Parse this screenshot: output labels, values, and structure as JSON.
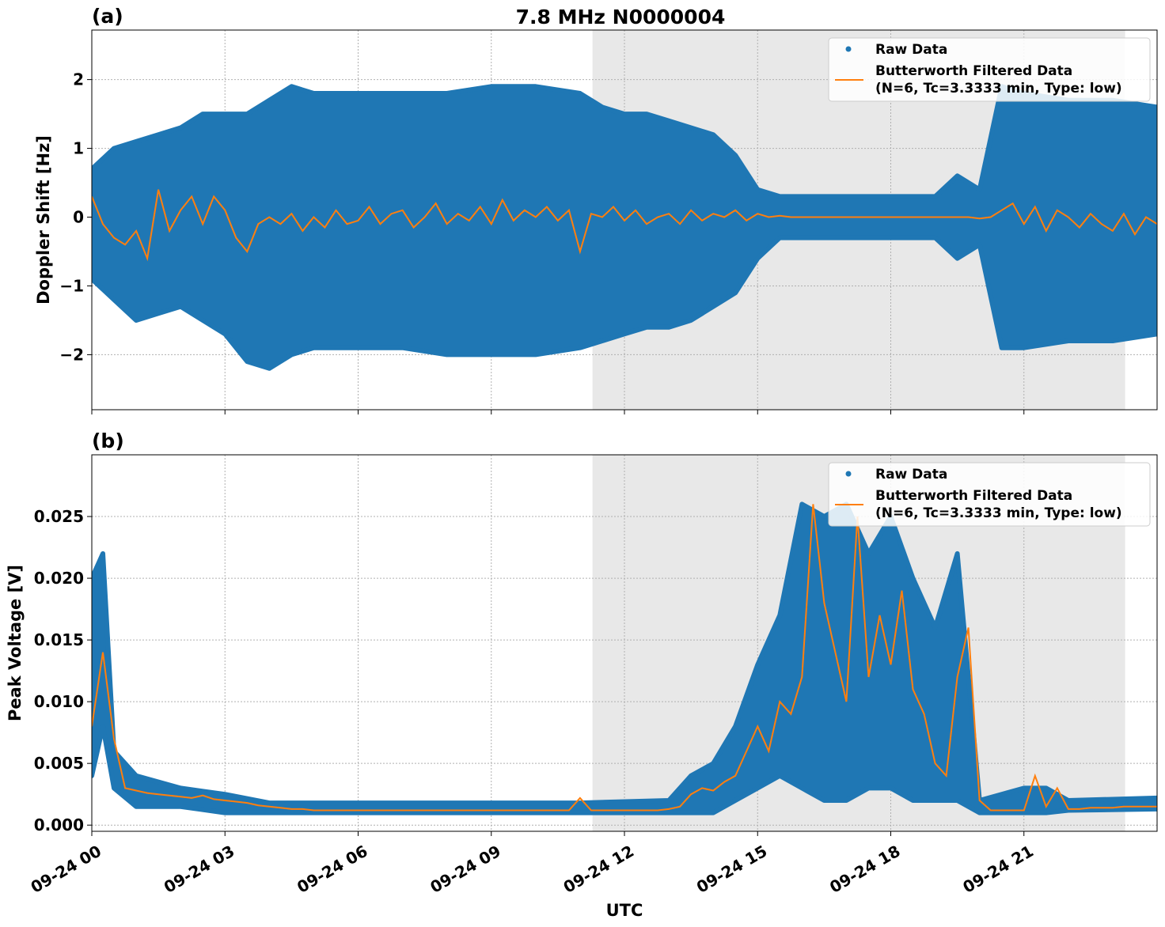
{
  "title": "7.8 MHz N0000004",
  "colors": {
    "raw": "#1f77b4",
    "filtered": "#ff7f0e",
    "shade": "#e8e8e8",
    "grid": "#b0b0b0"
  },
  "chart_data": [
    {
      "type": "scatter",
      "panel_label": "(a)",
      "ylabel": "Doppler Shift [Hz]",
      "xlabel": "",
      "x_unit": "hours UTC since 09-24 00",
      "xlim": [
        0,
        24
      ],
      "ylim": [
        -2.8,
        2.72
      ],
      "xticks": [
        0,
        3,
        6,
        9,
        12,
        15,
        18,
        21
      ],
      "xtick_labels": [
        "09-24 00",
        "09-24 03",
        "09-24 06",
        "09-24 09",
        "09-24 12",
        "09-24 15",
        "09-24 18",
        "09-24 21"
      ],
      "yticks": [
        -2,
        -1,
        0,
        1,
        2
      ],
      "ytick_labels": [
        "−2",
        "−1",
        "0",
        "1",
        "2"
      ],
      "grid": true,
      "shaded_span": [
        11.28,
        23.28
      ],
      "legend": {
        "placement": "top-right",
        "entries": [
          "Raw Data",
          "Butterworth Filtered Data",
          "(N=6, Tc=3.3333 min, Type: low)"
        ]
      },
      "raw_envelope": [
        [
          0,
          -0.9,
          0.7
        ],
        [
          0.5,
          -1.2,
          1.0
        ],
        [
          1,
          -1.5,
          1.1
        ],
        [
          1.5,
          -1.4,
          1.2
        ],
        [
          2,
          -1.3,
          1.3
        ],
        [
          2.5,
          -1.5,
          1.5
        ],
        [
          3,
          -1.7,
          1.5
        ],
        [
          3.5,
          -2.1,
          1.5
        ],
        [
          4,
          -2.2,
          1.7
        ],
        [
          4.5,
          -2.0,
          1.9
        ],
        [
          5,
          -1.9,
          1.8
        ],
        [
          6,
          -1.9,
          1.8
        ],
        [
          7,
          -1.9,
          1.8
        ],
        [
          8,
          -2.0,
          1.8
        ],
        [
          9,
          -2.0,
          1.9
        ],
        [
          10,
          -2.0,
          1.9
        ],
        [
          11,
          -1.9,
          1.8
        ],
        [
          11.5,
          -1.8,
          1.6
        ],
        [
          12,
          -1.7,
          1.5
        ],
        [
          12.5,
          -1.6,
          1.5
        ],
        [
          13,
          -1.6,
          1.4
        ],
        [
          13.5,
          -1.5,
          1.3
        ],
        [
          14,
          -1.3,
          1.2
        ],
        [
          14.5,
          -1.1,
          0.9
        ],
        [
          15,
          -0.6,
          0.4
        ],
        [
          15.5,
          -0.3,
          0.3
        ],
        [
          19,
          -0.3,
          0.3
        ],
        [
          19.5,
          -0.6,
          0.6
        ],
        [
          20,
          -0.4,
          0.4
        ],
        [
          20.5,
          -1.9,
          1.9
        ],
        [
          21,
          -1.9,
          1.8
        ],
        [
          22,
          -1.8,
          1.7
        ],
        [
          23,
          -1.8,
          1.7
        ],
        [
          24,
          -1.7,
          1.6
        ]
      ],
      "filtered_step_hours": 0.25,
      "filtered": [
        0.3,
        -0.1,
        -0.3,
        -0.4,
        -0.2,
        -0.6,
        0.4,
        -0.2,
        0.1,
        0.3,
        -0.1,
        0.3,
        0.1,
        -0.3,
        -0.5,
        -0.1,
        0.0,
        -0.1,
        0.05,
        -0.2,
        0.0,
        -0.15,
        0.1,
        -0.1,
        -0.05,
        0.15,
        -0.1,
        0.05,
        0.1,
        -0.15,
        0.0,
        0.2,
        -0.1,
        0.05,
        -0.05,
        0.15,
        -0.1,
        0.25,
        -0.05,
        0.1,
        0.0,
        0.15,
        -0.05,
        0.1,
        -0.5,
        0.05,
        0.0,
        0.15,
        -0.05,
        0.1,
        -0.1,
        0.0,
        0.05,
        -0.1,
        0.1,
        -0.05,
        0.05,
        0.0,
        0.1,
        -0.05,
        0.05,
        0.0,
        0.02,
        0,
        0,
        0,
        0,
        0,
        0,
        0,
        0,
        0,
        0,
        0,
        0,
        0,
        0,
        0,
        0,
        0,
        -0.02,
        0.0,
        0.1,
        0.2,
        -0.1,
        0.15,
        -0.2,
        0.1,
        0.0,
        -0.15,
        0.05,
        -0.1,
        -0.2,
        0.05,
        -0.25,
        0.0,
        -0.1
      ]
    },
    {
      "type": "scatter",
      "panel_label": "(b)",
      "ylabel": "Peak Voltage [V]",
      "xlabel": "UTC",
      "x_unit": "hours UTC since 09-24 00",
      "xlim": [
        0,
        24
      ],
      "ylim": [
        -0.0005,
        0.03
      ],
      "xticks": [
        0,
        3,
        6,
        9,
        12,
        15,
        18,
        21
      ],
      "xtick_labels": [
        "09-24 00",
        "09-24 03",
        "09-24 06",
        "09-24 09",
        "09-24 12",
        "09-24 15",
        "09-24 18",
        "09-24 21"
      ],
      "yticks": [
        0,
        0.005,
        0.01,
        0.015,
        0.02,
        0.025
      ],
      "ytick_labels": [
        "0.000",
        "0.005",
        "0.010",
        "0.015",
        "0.020",
        "0.025"
      ],
      "grid": true,
      "shaded_span": [
        11.28,
        23.28
      ],
      "legend": {
        "placement": "top-right",
        "entries": [
          "Raw Data",
          "Butterworth Filtered Data",
          "(N=6, Tc=3.3333 min, Type: low)"
        ]
      },
      "raw_envelope": [
        [
          0,
          0.004,
          0.02
        ],
        [
          0.25,
          0.008,
          0.022
        ],
        [
          0.5,
          0.003,
          0.006
        ],
        [
          1,
          0.0015,
          0.004
        ],
        [
          2,
          0.0015,
          0.003
        ],
        [
          3,
          0.001,
          0.0025
        ],
        [
          4,
          0.001,
          0.0018
        ],
        [
          11,
          0.001,
          0.0018
        ],
        [
          13,
          0.001,
          0.002
        ],
        [
          13.5,
          0.001,
          0.004
        ],
        [
          14,
          0.001,
          0.005
        ],
        [
          14.5,
          0.002,
          0.008
        ],
        [
          15,
          0.003,
          0.013
        ],
        [
          15.5,
          0.004,
          0.017
        ],
        [
          16,
          0.003,
          0.026
        ],
        [
          16.5,
          0.002,
          0.025
        ],
        [
          17,
          0.002,
          0.026
        ],
        [
          17.5,
          0.003,
          0.022
        ],
        [
          18,
          0.003,
          0.025
        ],
        [
          18.5,
          0.002,
          0.02
        ],
        [
          19,
          0.002,
          0.016
        ],
        [
          19.5,
          0.002,
          0.022
        ],
        [
          20,
          0.001,
          0.002
        ],
        [
          21,
          0.001,
          0.003
        ],
        [
          21.5,
          0.001,
          0.003
        ],
        [
          22,
          0.0012,
          0.002
        ],
        [
          24,
          0.0013,
          0.0022
        ]
      ],
      "filtered_step_hours": 0.25,
      "filtered": [
        0.008,
        0.014,
        0.007,
        0.003,
        0.0028,
        0.0026,
        0.0025,
        0.0024,
        0.0023,
        0.0022,
        0.0024,
        0.0021,
        0.002,
        0.0019,
        0.0018,
        0.0016,
        0.0015,
        0.0014,
        0.0013,
        0.0013,
        0.0012,
        0.0012,
        0.0012,
        0.0012,
        0.0012,
        0.0012,
        0.0012,
        0.0012,
        0.0012,
        0.0012,
        0.0012,
        0.0012,
        0.0012,
        0.0012,
        0.0012,
        0.0012,
        0.0012,
        0.0012,
        0.0012,
        0.0012,
        0.0012,
        0.0012,
        0.0012,
        0.0012,
        0.0022,
        0.0012,
        0.0012,
        0.0012,
        0.0012,
        0.0012,
        0.0012,
        0.0012,
        0.0013,
        0.0015,
        0.0025,
        0.003,
        0.0028,
        0.0035,
        0.004,
        0.006,
        0.008,
        0.006,
        0.01,
        0.009,
        0.012,
        0.026,
        0.018,
        0.014,
        0.01,
        0.025,
        0.012,
        0.017,
        0.013,
        0.019,
        0.011,
        0.009,
        0.005,
        0.004,
        0.012,
        0.016,
        0.002,
        0.0012,
        0.0012,
        0.0012,
        0.0012,
        0.004,
        0.0015,
        0.003,
        0.0013,
        0.0013,
        0.0014,
        0.0014,
        0.0014,
        0.0015,
        0.0015,
        0.0015,
        0.0015
      ]
    }
  ]
}
